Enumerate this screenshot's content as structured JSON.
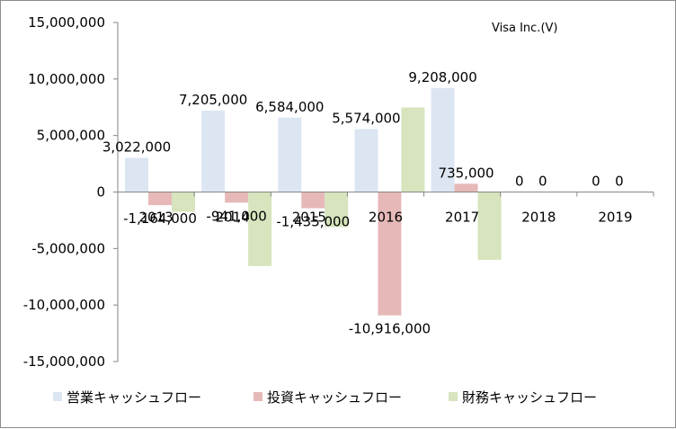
{
  "chart_data": {
    "type": "bar",
    "title": "Visa Inc.(V)",
    "categories": [
      "2013",
      "2014",
      "2015",
      "2016",
      "2017",
      "2018",
      "2019"
    ],
    "series": [
      {
        "name": "営業キャッシュフロー",
        "color": "#dce6f2",
        "values": [
          3022000,
          7205000,
          6584000,
          5574000,
          9208000,
          0,
          0
        ],
        "labels": [
          "3,022,000",
          "7,205,000",
          "6,584,000",
          "5,574,000",
          "9,208,000",
          "0",
          "0"
        ]
      },
      {
        "name": "投資キャッシュフロー",
        "color": "#e6b9b8",
        "values": [
          -1164000,
          -941000,
          -1435000,
          -10916000,
          735000,
          0,
          0
        ],
        "labels": [
          "-1,164,000",
          "-941,000",
          "-1,435,000",
          "-10,916,000",
          "735,000",
          "0",
          "0"
        ]
      },
      {
        "name": "財務キャッシュフロー",
        "color": "#d7e4bd",
        "values": [
          -1750000,
          -6550000,
          -3100000,
          7480000,
          -6000000,
          0,
          0
        ],
        "labels": []
      }
    ],
    "ylim": [
      -15000000,
      15000000
    ],
    "yticks": [
      15000000,
      10000000,
      5000000,
      0,
      -5000000,
      -10000000,
      -15000000
    ],
    "ytick_labels": [
      "15,000,000",
      "10,000,000",
      "5,000,000",
      "0",
      "-5,000,000",
      "-10,000,000",
      "-15,000,000"
    ],
    "grid": false,
    "legend_position": "bottom"
  }
}
